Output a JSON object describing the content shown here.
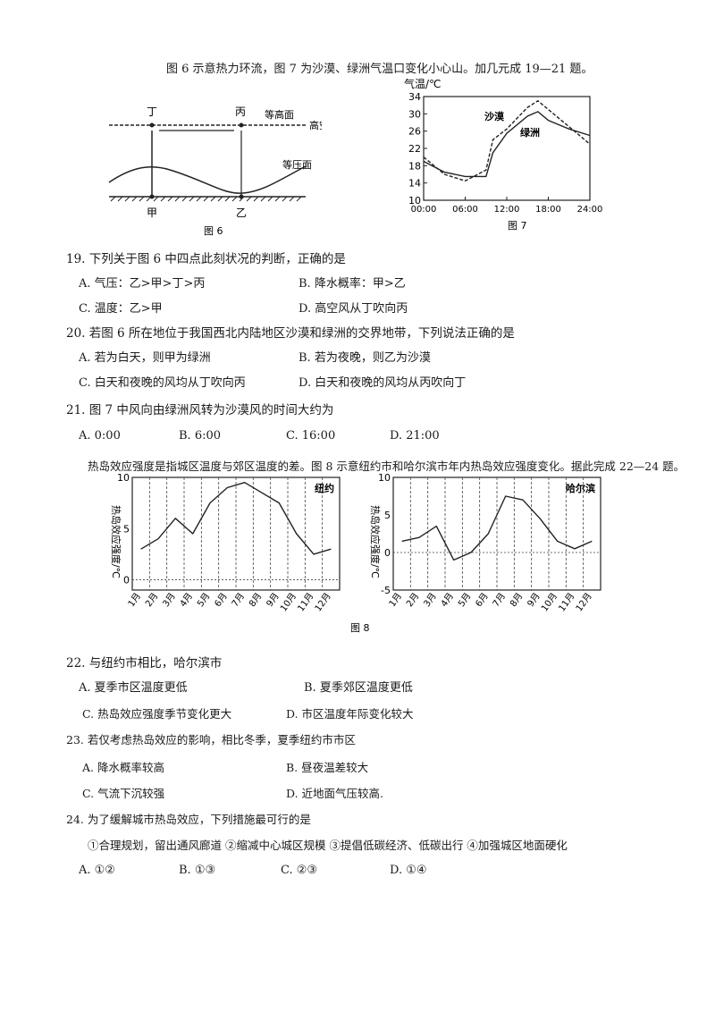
{
  "intro1": "图 6 示意热力环流，图 7 为沙漠、绿洲气温口变化小心山。加几元成 19—21 题。",
  "fig6": {
    "label_ding": "丁",
    "label_bing": "丙",
    "isoheight": "等高面",
    "high_air": "高空",
    "isobar": "等压面",
    "label_jia": "甲",
    "label_yi": "乙",
    "caption": "图 6"
  },
  "fig7": {
    "ylabel": "气温/℃",
    "yticks": [
      "34",
      "30",
      "26",
      "22",
      "18",
      "14",
      "10"
    ],
    "xticks": [
      "00:00",
      "06:00",
      "12:00",
      "18:00",
      "24:00"
    ],
    "desert": "沙漠",
    "oasis": "绿洲",
    "caption": "图 7"
  },
  "q19": {
    "stem": "19. 下列关于图 6 中四点此刻状况的判断，正确的是",
    "A": "A. 气压：乙>甲>丁>丙",
    "B": "B. 降水概率：甲>乙",
    "C": "C. 温度：乙>甲",
    "D": "D. 高空风从丁吹向丙"
  },
  "q20": {
    "stem": "20. 若图 6 所在地位于我国西北内陆地区沙漠和绿洲的交界地带，下列说法正确的是",
    "A": "A. 若为白天，则甲为绿洲",
    "B": "B. 若为夜晚，则乙为沙漠",
    "C": "C. 白天和夜晚的风均从丁吹向丙",
    "D": "D. 白天和夜晚的风均从丙吹向丁"
  },
  "q21": {
    "stem": "21. 图 7  中风向由绿洲风转为沙漠风的时间大约为",
    "A": "A. 0:00",
    "B": "B. 6:00",
    "C": "C. 16:00",
    "D": "D. 21:00"
  },
  "intro2": "热岛效应强度是指城区温度与郊区温度的差。图 8 示意纽约市和哈尔滨市年内热岛效应强度变化。据此完成 22—24 题。",
  "fig8": {
    "ylabel": "热岛效应强度/℃",
    "months": [
      "1月",
      "2月",
      "3月",
      "4月",
      "5月",
      "6月",
      "7月",
      "8月",
      "9月",
      "10月",
      "11月",
      "12月"
    ],
    "ny_title": "纽约",
    "ny_yticks": [
      "10",
      "5",
      "0"
    ],
    "hb_title": "哈尔滨",
    "hb_yticks": [
      "10",
      "5",
      "0",
      "-5"
    ],
    "caption": "图 8"
  },
  "q22": {
    "stem": "22. 与纽约市相比，哈尔滨市",
    "A": "A. 夏季市区温度更低",
    "B": "B. 夏季郊区温度更低",
    "C": "C. 热岛效应强度季节变化更大",
    "D": "D. 市区温度年际变化较大"
  },
  "q23": {
    "stem": "23. 若仅考虑热岛效应的影响，相比冬季，夏季纽约市市区",
    "A": "A. 降水概率较高",
    "B": "B. 昼夜温差较大",
    "C": "C. 气流下沉较强",
    "D": "D. 近地面气压较高."
  },
  "q24": {
    "stem": "24. 为了缓解城市热岛效应，下列措施最可行的是",
    "items": "①合理规划，留出通风廊道 ②缩减中心城区规模 ③提倡低碳经济、低碳出行 ④加强城区地面硬化",
    "A": "A. ①②",
    "B": "B. ①③",
    "C": "C. ②③",
    "D": "D. ①④"
  },
  "chart_data": [
    {
      "type": "line",
      "ylabel": "气温/℃",
      "ylim": [
        10,
        34
      ],
      "xlim": [
        "00:00",
        "24:00"
      ],
      "x": [
        0,
        3,
        6,
        9,
        10,
        12,
        15,
        16.5,
        18,
        21,
        24
      ],
      "series": [
        {
          "name": "沙漠",
          "values": [
            20,
            16,
            14.5,
            17,
            24,
            26.5,
            31.5,
            33,
            31,
            27,
            23
          ]
        },
        {
          "name": "绿洲",
          "values": [
            19,
            16.5,
            15.5,
            15.5,
            21,
            25.5,
            29.5,
            30.5,
            28.5,
            26.5,
            25
          ]
        }
      ]
    },
    {
      "type": "line",
      "title": "纽约",
      "ylabel": "热岛效应强度/℃",
      "ylim": [
        -1,
        10
      ],
      "categories": [
        "1月",
        "2月",
        "3月",
        "4月",
        "5月",
        "6月",
        "7月",
        "8月",
        "9月",
        "10月",
        "11月",
        "12月"
      ],
      "values": [
        3,
        4,
        6,
        4.5,
        7.5,
        9,
        9.5,
        8.5,
        7.5,
        4.5,
        2.5,
        3
      ]
    },
    {
      "type": "line",
      "title": "哈尔滨",
      "ylabel": "热岛效应强度/℃",
      "ylim": [
        -5,
        10
      ],
      "categories": [
        "1月",
        "2月",
        "3月",
        "4月",
        "5月",
        "6月",
        "7月",
        "8月",
        "9月",
        "10月",
        "11月",
        "12月"
      ],
      "values": [
        1.5,
        2,
        3.5,
        -1,
        0,
        2.5,
        7.5,
        7,
        4.5,
        1.5,
        0.5,
        1.5
      ]
    }
  ]
}
